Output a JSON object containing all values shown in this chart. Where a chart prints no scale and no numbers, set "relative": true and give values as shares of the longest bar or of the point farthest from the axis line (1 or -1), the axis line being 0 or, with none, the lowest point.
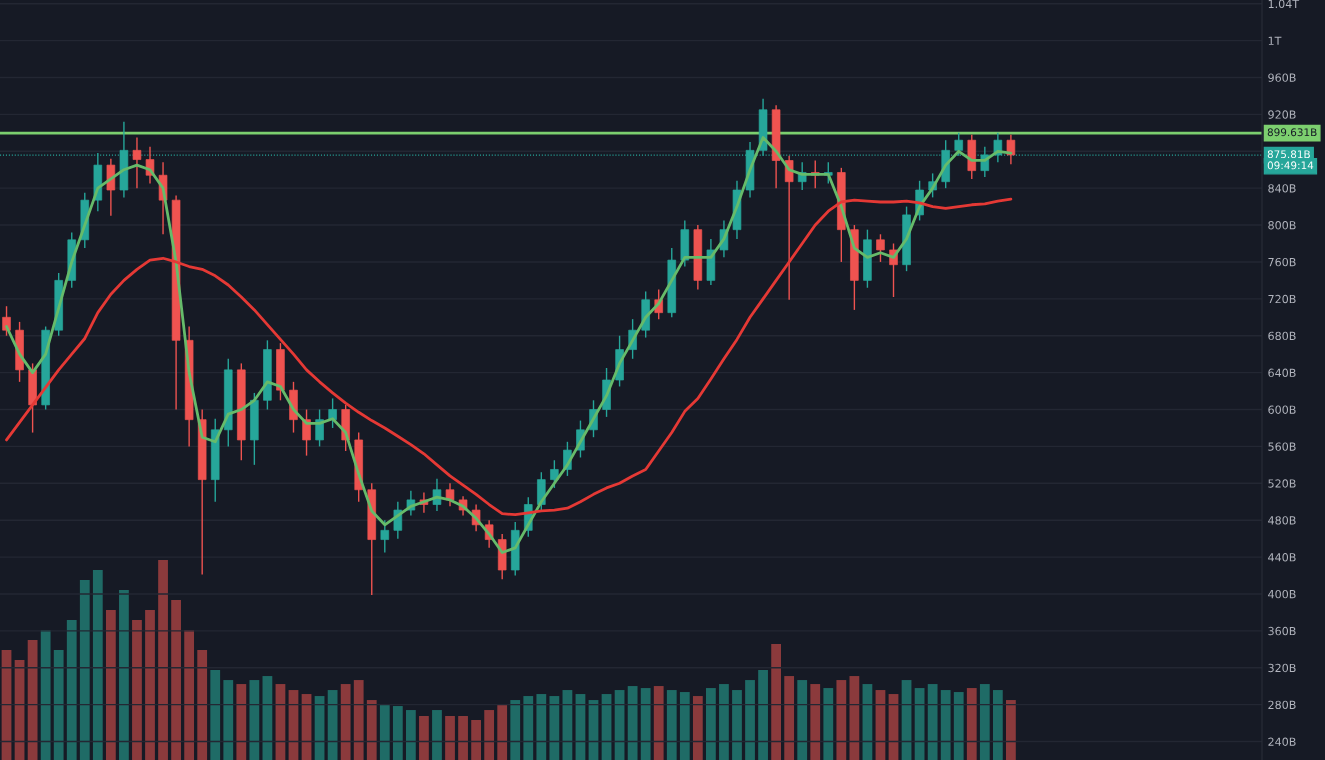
{
  "chart_data": [
    {
      "type": "candlestick",
      "categories": [
        null,
        null,
        null,
        null,
        null,
        null,
        null,
        null,
        null,
        null,
        null,
        null,
        null,
        null,
        null,
        null,
        null,
        null,
        null,
        null,
        null,
        null,
        null,
        null,
        null,
        null,
        null,
        null,
        null,
        null,
        null,
        null,
        null,
        null,
        null,
        null,
        null,
        null,
        null,
        null,
        null,
        null,
        null,
        null,
        null,
        null,
        null,
        null,
        null,
        null,
        null,
        null,
        null,
        null,
        null,
        null,
        null,
        null,
        null,
        null,
        null,
        null,
        null,
        null,
        null,
        null,
        null,
        null,
        null,
        null,
        null,
        null,
        null,
        null,
        null,
        null,
        null,
        null
      ],
      "ohlc": [
        [
          700000000000.0,
          712000000000.0,
          680000000000.0,
          686000000000.0
        ],
        [
          686000000000.0,
          695000000000.0,
          630000000000.0,
          643000000000.0
        ],
        [
          643000000000.0,
          650000000000.0,
          575000000000.0,
          605000000000.0
        ],
        [
          605000000000.0,
          690000000000.0,
          600000000000.0,
          686000000000.0
        ],
        [
          686000000000.0,
          748000000000.0,
          680000000000.0,
          740000000000.0
        ],
        [
          740000000000.0,
          792000000000.0,
          732000000000.0,
          784000000000.0
        ],
        [
          784000000000.0,
          835000000000.0,
          775000000000.0,
          827000000000.0
        ],
        [
          827000000000.0,
          878000000000.0,
          815000000000.0,
          865000000000.0
        ],
        [
          865000000000.0,
          872000000000.0,
          810000000000.0,
          838000000000.0
        ],
        [
          838000000000.0,
          912000000000.0,
          830000000000.0,
          881000000000.0
        ],
        [
          881000000000.0,
          895000000000.0,
          840000000000.0,
          871000000000.0
        ],
        [
          871000000000.0,
          885000000000.0,
          845000000000.0,
          854000000000.0
        ],
        [
          854000000000.0,
          868000000000.0,
          790000000000.0,
          827000000000.0
        ],
        [
          827000000000.0,
          832000000000.0,
          600000000000.0,
          675000000000.0
        ],
        [
          675000000000.0,
          690000000000.0,
          560000000000.0,
          589000000000.0
        ],
        [
          589000000000.0,
          600000000000.0,
          421000000000.0,
          524000000000.0
        ],
        [
          524000000000.0,
          590000000000.0,
          500000000000.0,
          578000000000.0
        ],
        [
          578000000000.0,
          655000000000.0,
          560000000000.0,
          643000000000.0
        ],
        [
          643000000000.0,
          650000000000.0,
          545000000000.0,
          567000000000.0
        ],
        [
          567000000000.0,
          618000000000.0,
          540000000000.0,
          610000000000.0
        ],
        [
          610000000000.0,
          675000000000.0,
          600000000000.0,
          665000000000.0
        ],
        [
          665000000000.0,
          672000000000.0,
          610000000000.0,
          621000000000.0
        ],
        [
          621000000000.0,
          630000000000.0,
          575000000000.0,
          589000000000.0
        ],
        [
          589000000000.0,
          600000000000.0,
          550000000000.0,
          567000000000.0
        ],
        [
          567000000000.0,
          600000000000.0,
          560000000000.0,
          589000000000.0
        ],
        [
          589000000000.0,
          612000000000.0,
          580000000000.0,
          600000000000.0
        ],
        [
          600000000000.0,
          605000000000.0,
          555000000000.0,
          567000000000.0
        ],
        [
          567000000000.0,
          575000000000.0,
          500000000000.0,
          513000000000.0
        ],
        [
          513000000000.0,
          520000000000.0,
          399000000000.0,
          459000000000.0
        ],
        [
          459000000000.0,
          480000000000.0,
          445000000000.0,
          469000000000.0
        ],
        [
          469000000000.0,
          500000000000.0,
          460000000000.0,
          491000000000.0
        ],
        [
          491000000000.0,
          512000000000.0,
          485000000000.0,
          502000000000.0
        ],
        [
          502000000000.0,
          510000000000.0,
          488000000000.0,
          497000000000.0
        ],
        [
          497000000000.0,
          525000000000.0,
          490000000000.0,
          513000000000.0
        ],
        [
          513000000000.0,
          520000000000.0,
          495000000000.0,
          502000000000.0
        ],
        [
          502000000000.0,
          506000000000.0,
          485000000000.0,
          491000000000.0
        ],
        [
          491000000000.0,
          497000000000.0,
          468000000000.0,
          475000000000.0
        ],
        [
          475000000000.0,
          480000000000.0,
          450000000000.0,
          459000000000.0
        ],
        [
          459000000000.0,
          465000000000.0,
          416000000000.0,
          426000000000.0
        ],
        [
          426000000000.0,
          478000000000.0,
          420000000000.0,
          469000000000.0
        ],
        [
          469000000000.0,
          505000000000.0,
          462000000000.0,
          497000000000.0
        ],
        [
          497000000000.0,
          532000000000.0,
          490000000000.0,
          524000000000.0
        ],
        [
          524000000000.0,
          545000000000.0,
          515000000000.0,
          535000000000.0
        ],
        [
          535000000000.0,
          565000000000.0,
          528000000000.0,
          556000000000.0
        ],
        [
          556000000000.0,
          588000000000.0,
          548000000000.0,
          578000000000.0
        ],
        [
          578000000000.0,
          610000000000.0,
          570000000000.0,
          600000000000.0
        ],
        [
          600000000000.0,
          645000000000.0,
          592000000000.0,
          632000000000.0
        ],
        [
          632000000000.0,
          680000000000.0,
          625000000000.0,
          665000000000.0
        ],
        [
          665000000000.0,
          698000000000.0,
          655000000000.0,
          686000000000.0
        ],
        [
          686000000000.0,
          728000000000.0,
          678000000000.0,
          719000000000.0
        ],
        [
          719000000000.0,
          730000000000.0,
          698000000000.0,
          705000000000.0
        ],
        [
          705000000000.0,
          775000000000.0,
          700000000000.0,
          762000000000.0
        ],
        [
          762000000000.0,
          805000000000.0,
          755000000000.0,
          795000000000.0
        ],
        [
          795000000000.0,
          800000000000.0,
          730000000000.0,
          740000000000.0
        ],
        [
          740000000000.0,
          785000000000.0,
          735000000000.0,
          773000000000.0
        ],
        [
          773000000000.0,
          805000000000.0,
          765000000000.0,
          795000000000.0
        ],
        [
          795000000000.0,
          848000000000.0,
          785000000000.0,
          838000000000.0
        ],
        [
          838000000000.0,
          890000000000.0,
          830000000000.0,
          881000000000.0
        ],
        [
          881000000000.0,
          937000000000.0,
          875000000000.0,
          925000000000.0
        ],
        [
          925000000000.0,
          930000000000.0,
          840000000000.0,
          870000000000.0
        ],
        [
          870000000000.0,
          875000000000.0,
          719000000000.0,
          847000000000.0
        ],
        [
          847000000000.0,
          868000000000.0,
          838000000000.0,
          857000000000.0
        ],
        [
          857000000000.0,
          870000000000.0,
          840000000000.0,
          854000000000.0
        ],
        [
          854000000000.0,
          868000000000.0,
          845000000000.0,
          857000000000.0
        ],
        [
          857000000000.0,
          862000000000.0,
          760000000000.0,
          795000000000.0
        ],
        [
          795000000000.0,
          800000000000.0,
          708000000000.0,
          740000000000.0
        ],
        [
          740000000000.0,
          795000000000.0,
          732000000000.0,
          784000000000.0
        ],
        [
          784000000000.0,
          790000000000.0,
          760000000000.0,
          773000000000.0
        ],
        [
          773000000000.0,
          780000000000.0,
          722000000000.0,
          757000000000.0
        ],
        [
          757000000000.0,
          820000000000.0,
          750000000000.0,
          811000000000.0
        ],
        [
          811000000000.0,
          848000000000.0,
          805000000000.0,
          838000000000.0
        ],
        [
          838000000000.0,
          856000000000.0,
          830000000000.0,
          847000000000.0
        ],
        [
          847000000000.0,
          892000000000.0,
          840000000000.0,
          881000000000.0
        ],
        [
          881000000000.0,
          900000000000.0,
          875000000000.0,
          892000000000.0
        ],
        [
          892000000000.0,
          898000000000.0,
          850000000000.0,
          859000000000.0
        ],
        [
          859000000000.0,
          885000000000.0,
          852000000000.0,
          876000000000.0
        ],
        [
          876000000000.0,
          900000000000.0,
          868000000000.0,
          892000000000.0
        ],
        [
          892000000000.0,
          898000000000.0,
          866000000000.0,
          876000000000.0
        ]
      ],
      "colors": [
        "#ef5350",
        "#ef5350",
        "#ef5350",
        "#26a69a",
        "#26a69a",
        "#26a69a",
        "#26a69a",
        "#26a69a",
        "#ef5350",
        "#26a69a",
        "#ef5350",
        "#ef5350",
        "#ef5350",
        "#ef5350",
        "#ef5350",
        "#ef5350",
        "#26a69a",
        "#26a69a",
        "#ef5350",
        "#26a69a",
        "#26a69a",
        "#ef5350",
        "#ef5350",
        "#ef5350",
        "#26a69a",
        "#26a69a",
        "#ef5350",
        "#ef5350",
        "#ef5350",
        "#26a69a",
        "#26a69a",
        "#26a69a",
        "#ef5350",
        "#26a69a",
        "#ef5350",
        "#ef5350",
        "#ef5350",
        "#ef5350",
        "#ef5350",
        "#26a69a",
        "#26a69a",
        "#26a69a",
        "#26a69a",
        "#26a69a",
        "#26a69a",
        "#26a69a",
        "#26a69a",
        "#26a69a",
        "#26a69a",
        "#26a69a",
        "#ef5350",
        "#26a69a",
        "#26a69a",
        "#ef5350",
        "#26a69a",
        "#26a69a",
        "#26a69a",
        "#26a69a",
        "#26a69a",
        "#ef5350",
        "#ef5350",
        "#26a69a",
        "#ef5350",
        "#26a69a",
        "#ef5350",
        "#ef5350",
        "#26a69a",
        "#ef5350",
        "#ef5350",
        "#26a69a",
        "#26a69a",
        "#26a69a",
        "#26a69a",
        "#26a69a",
        "#ef5350",
        "#26a69a",
        "#26a69a",
        "#ef5350"
      ],
      "series": [
        {
          "type": "line",
          "color": "#66bb6a",
          "values": [
            690000000000.0,
            660000000000.0,
            640000000000.0,
            660000000000.0,
            710000000000.0,
            760000000000.0,
            800000000000.0,
            840000000000.0,
            850000000000.0,
            860000000000.0,
            865000000000.0,
            860000000000.0,
            840000000000.0,
            760000000000.0,
            640000000000.0,
            570000000000.0,
            565000000000.0,
            595000000000.0,
            600000000000.0,
            610000000000.0,
            630000000000.0,
            625000000000.0,
            600000000000.0,
            585000000000.0,
            585000000000.0,
            590000000000.0,
            575000000000.0,
            530000000000.0,
            490000000000.0,
            475000000000.0,
            485000000000.0,
            495000000000.0,
            500000000000.0,
            505000000000.0,
            502000000000.0,
            495000000000.0,
            482000000000.0,
            465000000000.0,
            445000000000.0,
            450000000000.0,
            475000000000.0,
            500000000000.0,
            520000000000.0,
            540000000000.0,
            565000000000.0,
            590000000000.0,
            615000000000.0,
            650000000000.0,
            675000000000.0,
            700000000000.0,
            715000000000.0,
            740000000000.0,
            765000000000.0,
            765000000000.0,
            765000000000.0,
            785000000000.0,
            820000000000.0,
            860000000000.0,
            895000000000.0,
            880000000000.0,
            860000000000.0,
            855000000000.0,
            855000000000.0,
            855000000000.0,
            820000000000.0,
            775000000000.0,
            765000000000.0,
            770000000000.0,
            765000000000.0,
            785000000000.0,
            820000000000.0,
            840000000000.0,
            865000000000.0,
            880000000000.0,
            870000000000.0,
            870000000000.0,
            880000000000.0,
            878000000000.0
          ]
        },
        {
          "type": "line",
          "color": "#e53935",
          "values": [
            567000000000.0,
            586000000000.0,
            605000000000.0,
            624000000000.0,
            643000000000.0,
            660000000000.0,
            677000000000.0,
            705000000000.0,
            725000000000.0,
            740000000000.0,
            752000000000.0,
            762000000000.0,
            764000000000.0,
            760000000000.0,
            755000000000.0,
            752000000000.0,
            745000000000.0,
            735000000000.0,
            722000000000.0,
            708000000000.0,
            692000000000.0,
            676000000000.0,
            660000000000.0,
            643000000000.0,
            630000000000.0,
            618000000000.0,
            607000000000.0,
            597000000000.0,
            588000000000.0,
            580000000000.0,
            571000000000.0,
            562000000000.0,
            552000000000.0,
            540000000000.0,
            528000000000.0,
            518000000000.0,
            508000000000.0,
            497000000000.0,
            487000000000.0,
            486000000000.0,
            488000000000.0,
            490000000000.0,
            491000000000.0,
            493000000000.0,
            500000000000.0,
            508000000000.0,
            515000000000.0,
            520000000000.0,
            528000000000.0,
            535000000000.0,
            555000000000.0,
            575000000000.0,
            598000000000.0,
            612000000000.0,
            633000000000.0,
            655000000000.0,
            676000000000.0,
            700000000000.0,
            720000000000.0,
            740000000000.0,
            760000000000.0,
            780000000000.0,
            800000000000.0,
            815000000000.0,
            825000000000.0,
            827000000000.0,
            826000000000.0,
            825000000000.0,
            825000000000.0,
            826000000000.0,
            824000000000.0,
            820000000000.0,
            818000000000.0,
            820000000000.0,
            822000000000.0,
            823000000000.0,
            826000000000.0,
            828000000000.0
          ]
        }
      ],
      "ylim": [
        220000000000.0,
        1044000000000.0
      ],
      "yticks": [
        {
          "value": 240000000000.0,
          "label": "240B"
        },
        {
          "value": 280000000000.0,
          "label": "280B"
        },
        {
          "value": 320000000000.0,
          "label": "320B"
        },
        {
          "value": 360000000000.0,
          "label": "360B"
        },
        {
          "value": 400000000000.0,
          "label": "400B"
        },
        {
          "value": 440000000000.0,
          "label": "440B"
        },
        {
          "value": 480000000000.0,
          "label": "480B"
        },
        {
          "value": 520000000000.0,
          "label": "520B"
        },
        {
          "value": 560000000000.0,
          "label": "560B"
        },
        {
          "value": 600000000000.0,
          "label": "600B"
        },
        {
          "value": 640000000000.0,
          "label": "640B"
        },
        {
          "value": 680000000000.0,
          "label": "680B"
        },
        {
          "value": 720000000000.0,
          "label": "720B"
        },
        {
          "value": 760000000000.0,
          "label": "760B"
        },
        {
          "value": 800000000000.0,
          "label": "800B"
        },
        {
          "value": 840000000000.0,
          "label": "840B"
        },
        {
          "value": 880000000000.0,
          "label": null
        },
        {
          "value": 920000000000.0,
          "label": "920B"
        },
        {
          "value": 960000000000.0,
          "label": "960B"
        },
        {
          "value": 1000000000000.0,
          "label": "1T"
        },
        {
          "value": 1040000000000.0,
          "label": "1.04T"
        }
      ],
      "grid": "y",
      "ref_lines": [
        {
          "axis": "y",
          "value": 899631000000.0,
          "label": "899.631B",
          "color": "#7ccf6f",
          "line_style": "solid"
        },
        {
          "axis": "y",
          "value": 875810000000.0,
          "label": "875.81B",
          "color": "#26a69a",
          "line_style": "dotted"
        }
      ],
      "annotations": [
        "09:49:14"
      ]
    },
    {
      "type": "bar",
      "relative": true,
      "categories": [
        null,
        null,
        null,
        null,
        null,
        null,
        null,
        null,
        null,
        null,
        null,
        null,
        null,
        null,
        null,
        null,
        null,
        null,
        null,
        null,
        null,
        null,
        null,
        null,
        null,
        null,
        null,
        null,
        null,
        null,
        null,
        null,
        null,
        null,
        null,
        null,
        null,
        null,
        null,
        null,
        null,
        null,
        null,
        null,
        null,
        null,
        null,
        null,
        null,
        null,
        null,
        null,
        null,
        null,
        null,
        null,
        null,
        null,
        null,
        null,
        null,
        null,
        null,
        null,
        null,
        null,
        null,
        null,
        null,
        null,
        null,
        null,
        null,
        null,
        null,
        null,
        null,
        null
      ],
      "values": [
        0.55,
        0.5,
        0.6,
        0.65,
        0.55,
        0.7,
        0.9,
        0.95,
        0.75,
        0.85,
        0.7,
        0.75,
        1.0,
        0.8,
        0.65,
        0.55,
        0.45,
        0.4,
        0.38,
        0.4,
        0.42,
        0.38,
        0.35,
        0.33,
        0.32,
        0.35,
        0.38,
        0.4,
        0.3,
        0.28,
        0.27,
        0.25,
        0.22,
        0.25,
        0.22,
        0.22,
        0.2,
        0.25,
        0.28,
        0.3,
        0.32,
        0.33,
        0.32,
        0.35,
        0.33,
        0.3,
        0.33,
        0.35,
        0.37,
        0.36,
        0.37,
        0.35,
        0.34,
        0.32,
        0.36,
        0.38,
        0.35,
        0.4,
        0.45,
        0.58,
        0.42,
        0.4,
        0.38,
        0.36,
        0.4,
        0.42,
        0.38,
        0.35,
        0.33,
        0.4,
        0.36,
        0.38,
        0.35,
        0.34,
        0.36,
        0.38,
        0.35,
        0.3
      ],
      "colors": [
        "#8b3a3c",
        "#8b3a3c",
        "#8b3a3c",
        "#1f6b66",
        "#1f6b66",
        "#1f6b66",
        "#1f6b66",
        "#1f6b66",
        "#8b3a3c",
        "#1f6b66",
        "#8b3a3c",
        "#8b3a3c",
        "#8b3a3c",
        "#8b3a3c",
        "#8b3a3c",
        "#8b3a3c",
        "#1f6b66",
        "#1f6b66",
        "#8b3a3c",
        "#1f6b66",
        "#1f6b66",
        "#8b3a3c",
        "#8b3a3c",
        "#8b3a3c",
        "#1f6b66",
        "#1f6b66",
        "#8b3a3c",
        "#8b3a3c",
        "#8b3a3c",
        "#1f6b66",
        "#1f6b66",
        "#1f6b66",
        "#8b3a3c",
        "#1f6b66",
        "#8b3a3c",
        "#8b3a3c",
        "#8b3a3c",
        "#8b3a3c",
        "#8b3a3c",
        "#1f6b66",
        "#1f6b66",
        "#1f6b66",
        "#1f6b66",
        "#1f6b66",
        "#1f6b66",
        "#1f6b66",
        "#1f6b66",
        "#1f6b66",
        "#1f6b66",
        "#1f6b66",
        "#8b3a3c",
        "#1f6b66",
        "#1f6b66",
        "#8b3a3c",
        "#1f6b66",
        "#1f6b66",
        "#1f6b66",
        "#1f6b66",
        "#1f6b66",
        "#8b3a3c",
        "#8b3a3c",
        "#1f6b66",
        "#8b3a3c",
        "#1f6b66",
        "#8b3a3c",
        "#8b3a3c",
        "#1f6b66",
        "#8b3a3c",
        "#8b3a3c",
        "#1f6b66",
        "#1f6b66",
        "#1f6b66",
        "#1f6b66",
        "#1f6b66",
        "#8b3a3c",
        "#1f6b66",
        "#1f6b66",
        "#8b3a3c"
      ]
    }
  ]
}
